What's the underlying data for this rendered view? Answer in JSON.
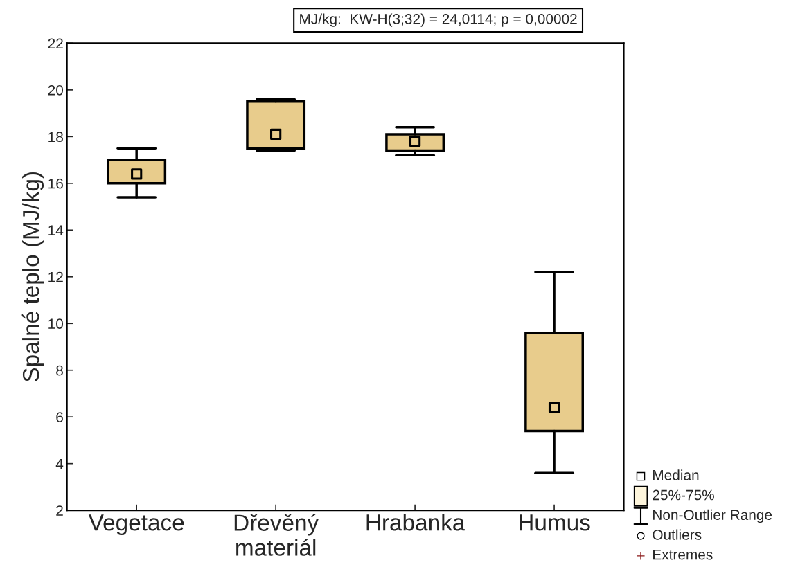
{
  "chart_data": {
    "type": "box",
    "ylabel": "Spalné teplo (MJ/kg)",
    "categories": [
      "Vegetace",
      "Dřevěný\nmateriál",
      "Hrabanka",
      "Humus"
    ],
    "boxes": [
      {
        "low": 15.4,
        "q1": 16.0,
        "median": 16.4,
        "q3": 17.0,
        "high": 17.5
      },
      {
        "low": 17.4,
        "q1": 17.5,
        "median": 18.1,
        "q3": 19.5,
        "high": 19.6
      },
      {
        "low": 17.2,
        "q1": 17.4,
        "median": 17.8,
        "q3": 18.1,
        "high": 18.4
      },
      {
        "low": 3.6,
        "q1": 5.4,
        "median": 6.4,
        "q3": 9.6,
        "high": 12.2
      }
    ],
    "color": "#e8cc8c",
    "marker": "square",
    "ylim": [
      2,
      22
    ],
    "yticks": [
      2,
      4,
      6,
      8,
      10,
      12,
      14,
      16,
      18,
      20,
      22
    ],
    "grid": false,
    "annotations": [
      "MJ/kg:  KW-H(3;32) = 24,0114; p = 0,00002",
      "Median",
      "25%-75%",
      "Non-Outlier Range",
      "Outliers",
      "Extremes"
    ]
  }
}
